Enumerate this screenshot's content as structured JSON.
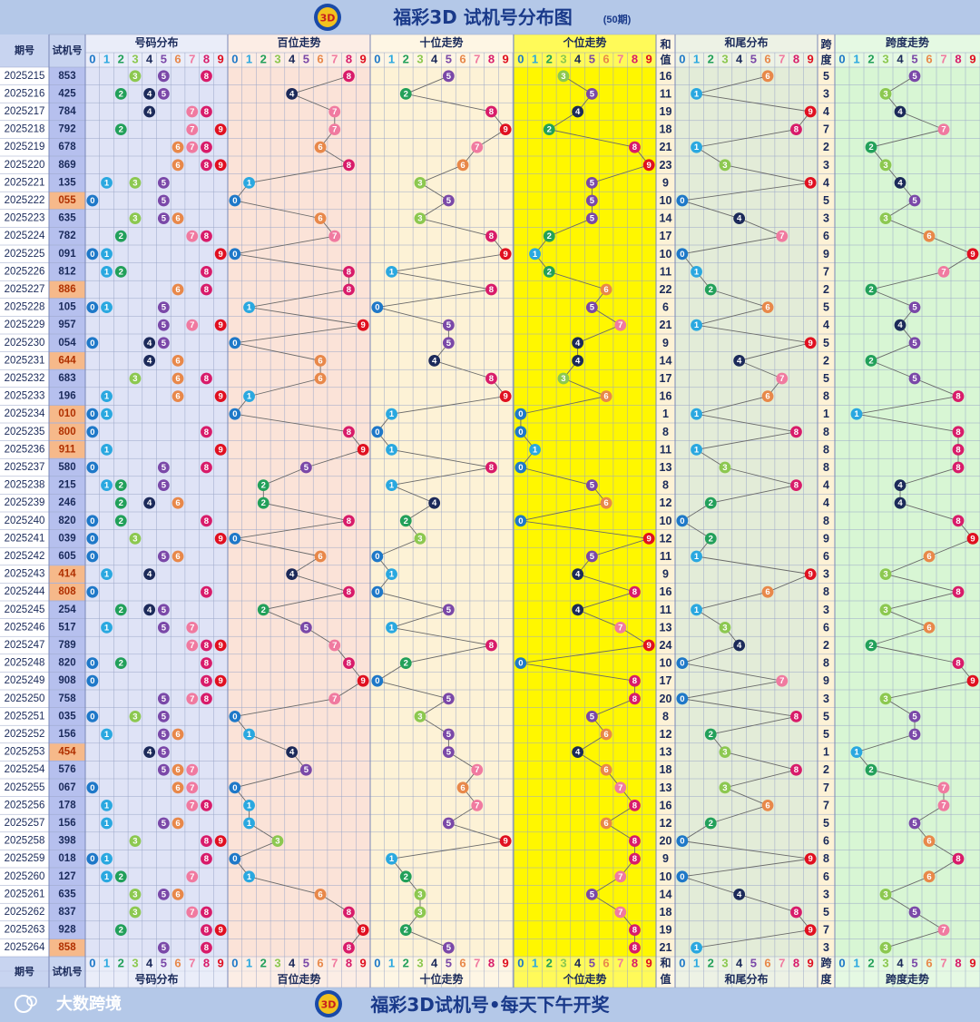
{
  "header": {
    "title": "福彩3D 试机号分布图",
    "subtitle": "(50期)",
    "logo_icon": "3d-lottery-logo-icon"
  },
  "footer": {
    "slogan": "福彩3D试机号•每天下午开奖",
    "brand": "大数跨境",
    "brand_icon": "brand-logo-icon"
  },
  "columns": {
    "period": "期号",
    "trial": "试机号",
    "distribution": "号码分布",
    "hundreds": "百位走势",
    "tens": "十位走势",
    "units": "个位走势",
    "sum_top": "和",
    "sum_bottom": "值",
    "sum_tail": "和尾分布",
    "span_top": "跨",
    "span_bottom": "度",
    "span_trend": "跨度走势"
  },
  "digits": [
    "0",
    "1",
    "2",
    "3",
    "4",
    "5",
    "6",
    "7",
    "8",
    "9"
  ],
  "colors": {
    "0": "#1e78c8",
    "1": "#2aa8e0",
    "2": "#22a05a",
    "3": "#8cc850",
    "4": "#1c2a5a",
    "5": "#7a48a8",
    "6": "#e8884a",
    "7": "#f07aa0",
    "8": "#d81b6a",
    "9": "#e01020"
  },
  "chart_data": {
    "type": "table",
    "rows": [
      {
        "period": "2025215",
        "number": "853"
      },
      {
        "period": "2025216",
        "number": "425"
      },
      {
        "period": "2025217",
        "number": "784"
      },
      {
        "period": "2025218",
        "number": "792"
      },
      {
        "period": "2025219",
        "number": "678"
      },
      {
        "period": "2025220",
        "number": "869"
      },
      {
        "period": "2025221",
        "number": "135"
      },
      {
        "period": "2025222",
        "number": "055"
      },
      {
        "period": "2025223",
        "number": "635"
      },
      {
        "period": "2025224",
        "number": "782"
      },
      {
        "period": "2025225",
        "number": "091"
      },
      {
        "period": "2025226",
        "number": "812"
      },
      {
        "period": "2025227",
        "number": "886"
      },
      {
        "period": "2025228",
        "number": "105"
      },
      {
        "period": "2025229",
        "number": "957"
      },
      {
        "period": "2025230",
        "number": "054"
      },
      {
        "period": "2025231",
        "number": "644"
      },
      {
        "period": "2025232",
        "number": "683"
      },
      {
        "period": "2025233",
        "number": "196"
      },
      {
        "period": "2025234",
        "number": "010"
      },
      {
        "period": "2025235",
        "number": "800"
      },
      {
        "period": "2025236",
        "number": "911"
      },
      {
        "period": "2025237",
        "number": "580"
      },
      {
        "period": "2025238",
        "number": "215"
      },
      {
        "period": "2025239",
        "number": "246"
      },
      {
        "period": "2025240",
        "number": "820"
      },
      {
        "period": "2025241",
        "number": "039"
      },
      {
        "period": "2025242",
        "number": "605"
      },
      {
        "period": "2025243",
        "number": "414"
      },
      {
        "period": "2025244",
        "number": "808"
      },
      {
        "period": "2025245",
        "number": "254"
      },
      {
        "period": "2025246",
        "number": "517"
      },
      {
        "period": "2025247",
        "number": "789"
      },
      {
        "period": "2025248",
        "number": "820"
      },
      {
        "period": "2025249",
        "number": "908"
      },
      {
        "period": "2025250",
        "number": "758"
      },
      {
        "period": "2025251",
        "number": "035"
      },
      {
        "period": "2025252",
        "number": "156"
      },
      {
        "period": "2025253",
        "number": "454"
      },
      {
        "period": "2025254",
        "number": "576"
      },
      {
        "period": "2025255",
        "number": "067"
      },
      {
        "period": "2025256",
        "number": "178"
      },
      {
        "period": "2025257",
        "number": "156"
      },
      {
        "period": "2025258",
        "number": "398"
      },
      {
        "period": "2025259",
        "number": "018"
      },
      {
        "period": "2025260",
        "number": "127"
      },
      {
        "period": "2025261",
        "number": "635"
      },
      {
        "period": "2025262",
        "number": "837"
      },
      {
        "period": "2025263",
        "number": "928"
      },
      {
        "period": "2025264",
        "number": "858"
      }
    ]
  }
}
